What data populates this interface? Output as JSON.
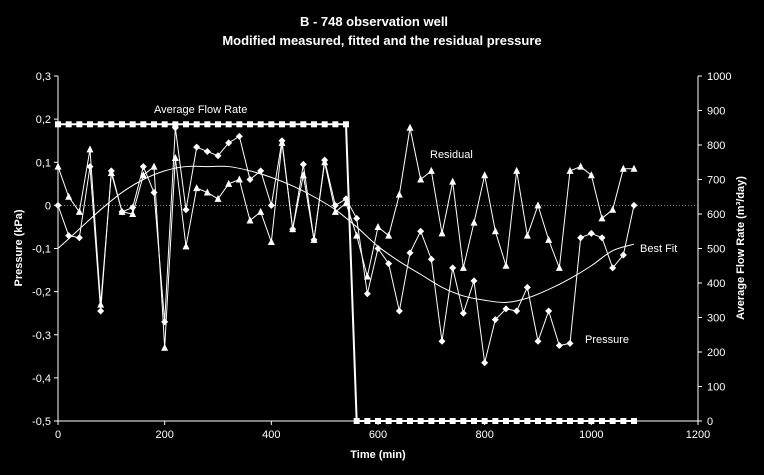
{
  "chart_data": {
    "type": "line",
    "title": "B - 748 observation well",
    "subtitle": "Modified measured, fitted and the residual pressure",
    "xlabel": "Time (min)",
    "ylabel_left": "Pressure (kPa)",
    "ylabel_right": "Average Flow Rate (m³/day)",
    "xlim": [
      0,
      1200
    ],
    "ylim_left": [
      -0.5,
      0.3
    ],
    "ylim_right": [
      0,
      1000
    ],
    "x_ticks": [
      "0",
      "200",
      "400",
      "600",
      "800",
      "1000",
      "1200"
    ],
    "y_left_ticks": [
      "-0,5",
      "-0,4",
      "-0,3",
      "-0,2",
      "-0,1",
      "0",
      "0,1",
      "0,2",
      "0,3"
    ],
    "y_right_ticks": [
      "0",
      "100",
      "200",
      "300",
      "400",
      "500",
      "600",
      "700",
      "800",
      "900",
      "1000"
    ],
    "grid": false,
    "reference_line_y": 0,
    "annotations": {
      "flow": "Average Flow Rate",
      "residual": "Residual",
      "fit": "Best Fit",
      "pressure": "Pressure"
    },
    "series": [
      {
        "name": "Average Flow Rate",
        "axis": "right",
        "marker": "square",
        "x": [
          0,
          20,
          40,
          60,
          80,
          100,
          120,
          140,
          160,
          180,
          200,
          220,
          240,
          260,
          280,
          300,
          320,
          340,
          360,
          380,
          400,
          420,
          440,
          460,
          480,
          500,
          520,
          540,
          560,
          580,
          600,
          620,
          640,
          660,
          680,
          700,
          720,
          740,
          760,
          780,
          800,
          820,
          840,
          860,
          880,
          900,
          920,
          940,
          960,
          980,
          1000,
          1020,
          1040,
          1060,
          1080
        ],
        "values": [
          860,
          860,
          860,
          860,
          860,
          860,
          860,
          860,
          860,
          860,
          860,
          860,
          860,
          860,
          860,
          860,
          860,
          860,
          860,
          860,
          860,
          860,
          860,
          860,
          860,
          860,
          860,
          860,
          0,
          0,
          0,
          0,
          0,
          0,
          0,
          0,
          0,
          0,
          0,
          0,
          0,
          0,
          0,
          0,
          0,
          0,
          0,
          0,
          0,
          0,
          0,
          0,
          0,
          0,
          0
        ]
      },
      {
        "name": "Pressure",
        "axis": "left",
        "marker": "diamond",
        "x": [
          0,
          20,
          40,
          60,
          80,
          100,
          120,
          140,
          160,
          180,
          200,
          220,
          240,
          260,
          280,
          300,
          320,
          340,
          360,
          380,
          400,
          420,
          440,
          460,
          480,
          500,
          520,
          540,
          560,
          580,
          600,
          620,
          640,
          660,
          680,
          700,
          720,
          740,
          760,
          780,
          800,
          820,
          840,
          860,
          880,
          900,
          920,
          940,
          960,
          980,
          1000,
          1020,
          1040,
          1060,
          1080
        ],
        "values": [
          0.0,
          -0.07,
          -0.075,
          0.09,
          -0.245,
          0.08,
          -0.015,
          -0.005,
          0.09,
          0.03,
          -0.27,
          0.18,
          -0.01,
          0.135,
          0.125,
          0.115,
          0.145,
          0.16,
          0.06,
          0.08,
          0.0,
          0.15,
          -0.055,
          0.095,
          -0.08,
          0.105,
          0.0,
          0.015,
          -0.03,
          -0.205,
          -0.1,
          -0.135,
          -0.245,
          -0.11,
          -0.06,
          -0.125,
          -0.315,
          -0.145,
          -0.25,
          -0.175,
          -0.365,
          -0.265,
          -0.24,
          -0.245,
          -0.19,
          -0.315,
          -0.245,
          -0.325,
          -0.32,
          -0.075,
          -0.065,
          -0.075,
          -0.145,
          -0.115,
          0.0
        ]
      },
      {
        "name": "Residual",
        "axis": "left",
        "marker": "triangle",
        "x": [
          0,
          20,
          40,
          60,
          80,
          100,
          120,
          140,
          160,
          180,
          200,
          220,
          240,
          260,
          280,
          300,
          320,
          340,
          360,
          380,
          400,
          420,
          440,
          460,
          480,
          500,
          520,
          540,
          560,
          580,
          600,
          620,
          640,
          660,
          680,
          700,
          720,
          740,
          760,
          780,
          800,
          820,
          840,
          860,
          880,
          900,
          920,
          940,
          960,
          980,
          1000,
          1020,
          1040,
          1060,
          1080
        ],
        "values": [
          0.09,
          0.02,
          -0.015,
          0.13,
          -0.23,
          0.075,
          -0.015,
          -0.02,
          0.07,
          0.09,
          -0.33,
          0.11,
          -0.095,
          0.04,
          0.03,
          0.015,
          0.05,
          0.06,
          -0.035,
          -0.015,
          -0.085,
          0.145,
          -0.055,
          0.07,
          -0.08,
          0.1,
          -0.015,
          0.005,
          -0.07,
          -0.165,
          -0.05,
          -0.07,
          0.025,
          0.18,
          0.06,
          0.08,
          -0.065,
          0.055,
          -0.145,
          -0.04,
          0.07,
          -0.06,
          -0.14,
          0.08,
          -0.07,
          0.0,
          -0.08,
          -0.145,
          0.08,
          0.09,
          0.07,
          -0.03,
          -0.01,
          0.085,
          0.085
        ]
      },
      {
        "name": "Best Fit",
        "axis": "left",
        "marker": "none",
        "x": [
          0,
          40,
          80,
          120,
          160,
          200,
          240,
          280,
          320,
          360,
          400,
          440,
          480,
          520,
          560,
          600,
          640,
          680,
          720,
          760,
          800,
          840,
          880,
          920,
          960,
          1000,
          1040,
          1080
        ],
        "values": [
          -0.1,
          -0.055,
          -0.01,
          0.03,
          0.06,
          0.08,
          0.09,
          0.09,
          0.09,
          0.08,
          0.065,
          0.045,
          0.02,
          -0.01,
          -0.05,
          -0.095,
          -0.13,
          -0.16,
          -0.19,
          -0.21,
          -0.22,
          -0.225,
          -0.215,
          -0.195,
          -0.17,
          -0.14,
          -0.105,
          -0.09
        ]
      }
    ]
  }
}
